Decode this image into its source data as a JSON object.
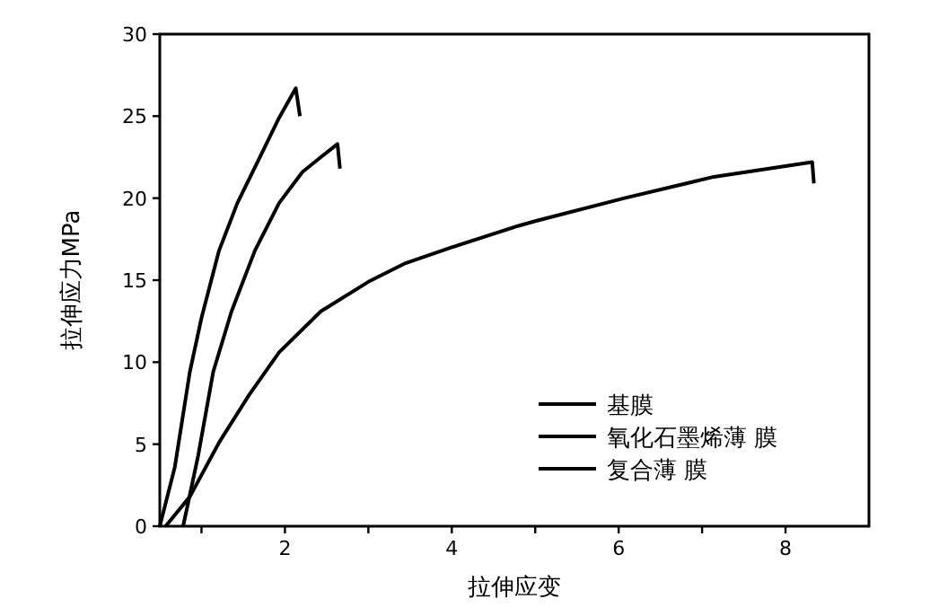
{
  "chart_data": {
    "type": "line",
    "xlabel": "拉伸应变",
    "ylabel": "拉伸应力MPa",
    "xlim": [
      0.5,
      9
    ],
    "ylim": [
      0,
      30
    ],
    "xticks": [
      {
        "value": 1,
        "label": null
      },
      2,
      {
        "value": 3,
        "label": null
      },
      4,
      {
        "value": 5,
        "label": null
      },
      6,
      {
        "value": 7,
        "label": null
      },
      8
    ],
    "yticks": [
      0,
      5,
      10,
      15,
      20,
      25,
      30
    ],
    "grid": false,
    "legend": "bottom right",
    "marker": "none",
    "line_style": "solid",
    "series": [
      {
        "name": "基膜",
        "color": "#000000",
        "x": [
          0.5,
          0.68,
          0.86,
          1.0,
          1.21,
          1.43,
          1.71,
          1.93,
          2.13,
          2.18
        ],
        "values": [
          0,
          3.6,
          9.4,
          12.7,
          16.8,
          19.7,
          22.6,
          24.9,
          26.7,
          25.0
        ]
      },
      {
        "name": "氧化石墨烯薄 膜",
        "color": "#000000",
        "x": [
          0.78,
          0.96,
          1.14,
          1.36,
          1.64,
          1.93,
          2.21,
          2.43,
          2.63,
          2.66
        ],
        "values": [
          0,
          4.3,
          9.4,
          13.1,
          16.8,
          19.7,
          21.6,
          22.5,
          23.3,
          21.8
        ]
      },
      {
        "name": "复合薄 膜",
        "color": "#000000",
        "x": [
          0.57,
          0.86,
          1.21,
          1.57,
          1.93,
          2.43,
          3.0,
          3.43,
          4.0,
          4.79,
          5.0,
          6.07,
          7.14,
          8.32,
          8.34
        ],
        "values": [
          0,
          1.8,
          5.1,
          8.0,
          10.6,
          13.1,
          14.9,
          16.0,
          17.0,
          18.3,
          18.6,
          20.0,
          21.3,
          22.2,
          20.9
        ]
      }
    ]
  }
}
